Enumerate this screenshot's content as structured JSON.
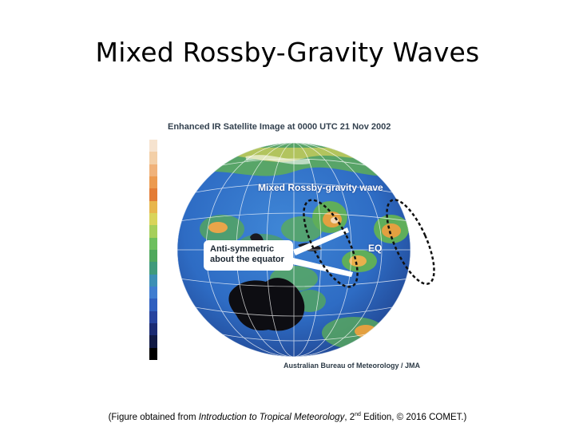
{
  "slide": {
    "title": "Mixed Rossby-Gravity Waves"
  },
  "figure": {
    "heading": "Enhanced IR Satellite Image at 0000 UTC  21 Nov 2002",
    "wave_label": "Mixed Rossby-gravity wave",
    "eq_label": "EQ",
    "callout_line1": "Anti-symmetric",
    "callout_line2": "about the equator",
    "credit": "Australian Bureau of Meteorology / JMA",
    "colorbar": [
      "#f6e3cf",
      "#f3cfa7",
      "#f0b27a",
      "#ec9a4f",
      "#e37c35",
      "#e8b64c",
      "#d9d45a",
      "#a6cf5b",
      "#6dbf5e",
      "#4fa85c",
      "#3f9a7b",
      "#3c8fb5",
      "#3f7dd0",
      "#2f5fbf",
      "#26439e",
      "#1b2b73",
      "#111a44",
      "#000000"
    ]
  },
  "caption": {
    "open": "(Figure obtained from ",
    "book": "Introduction to Tropical Meteorology",
    "edition_num": ", 2",
    "edition_sup": "nd",
    "rest": " Edition, © 2016 COMET.)"
  }
}
